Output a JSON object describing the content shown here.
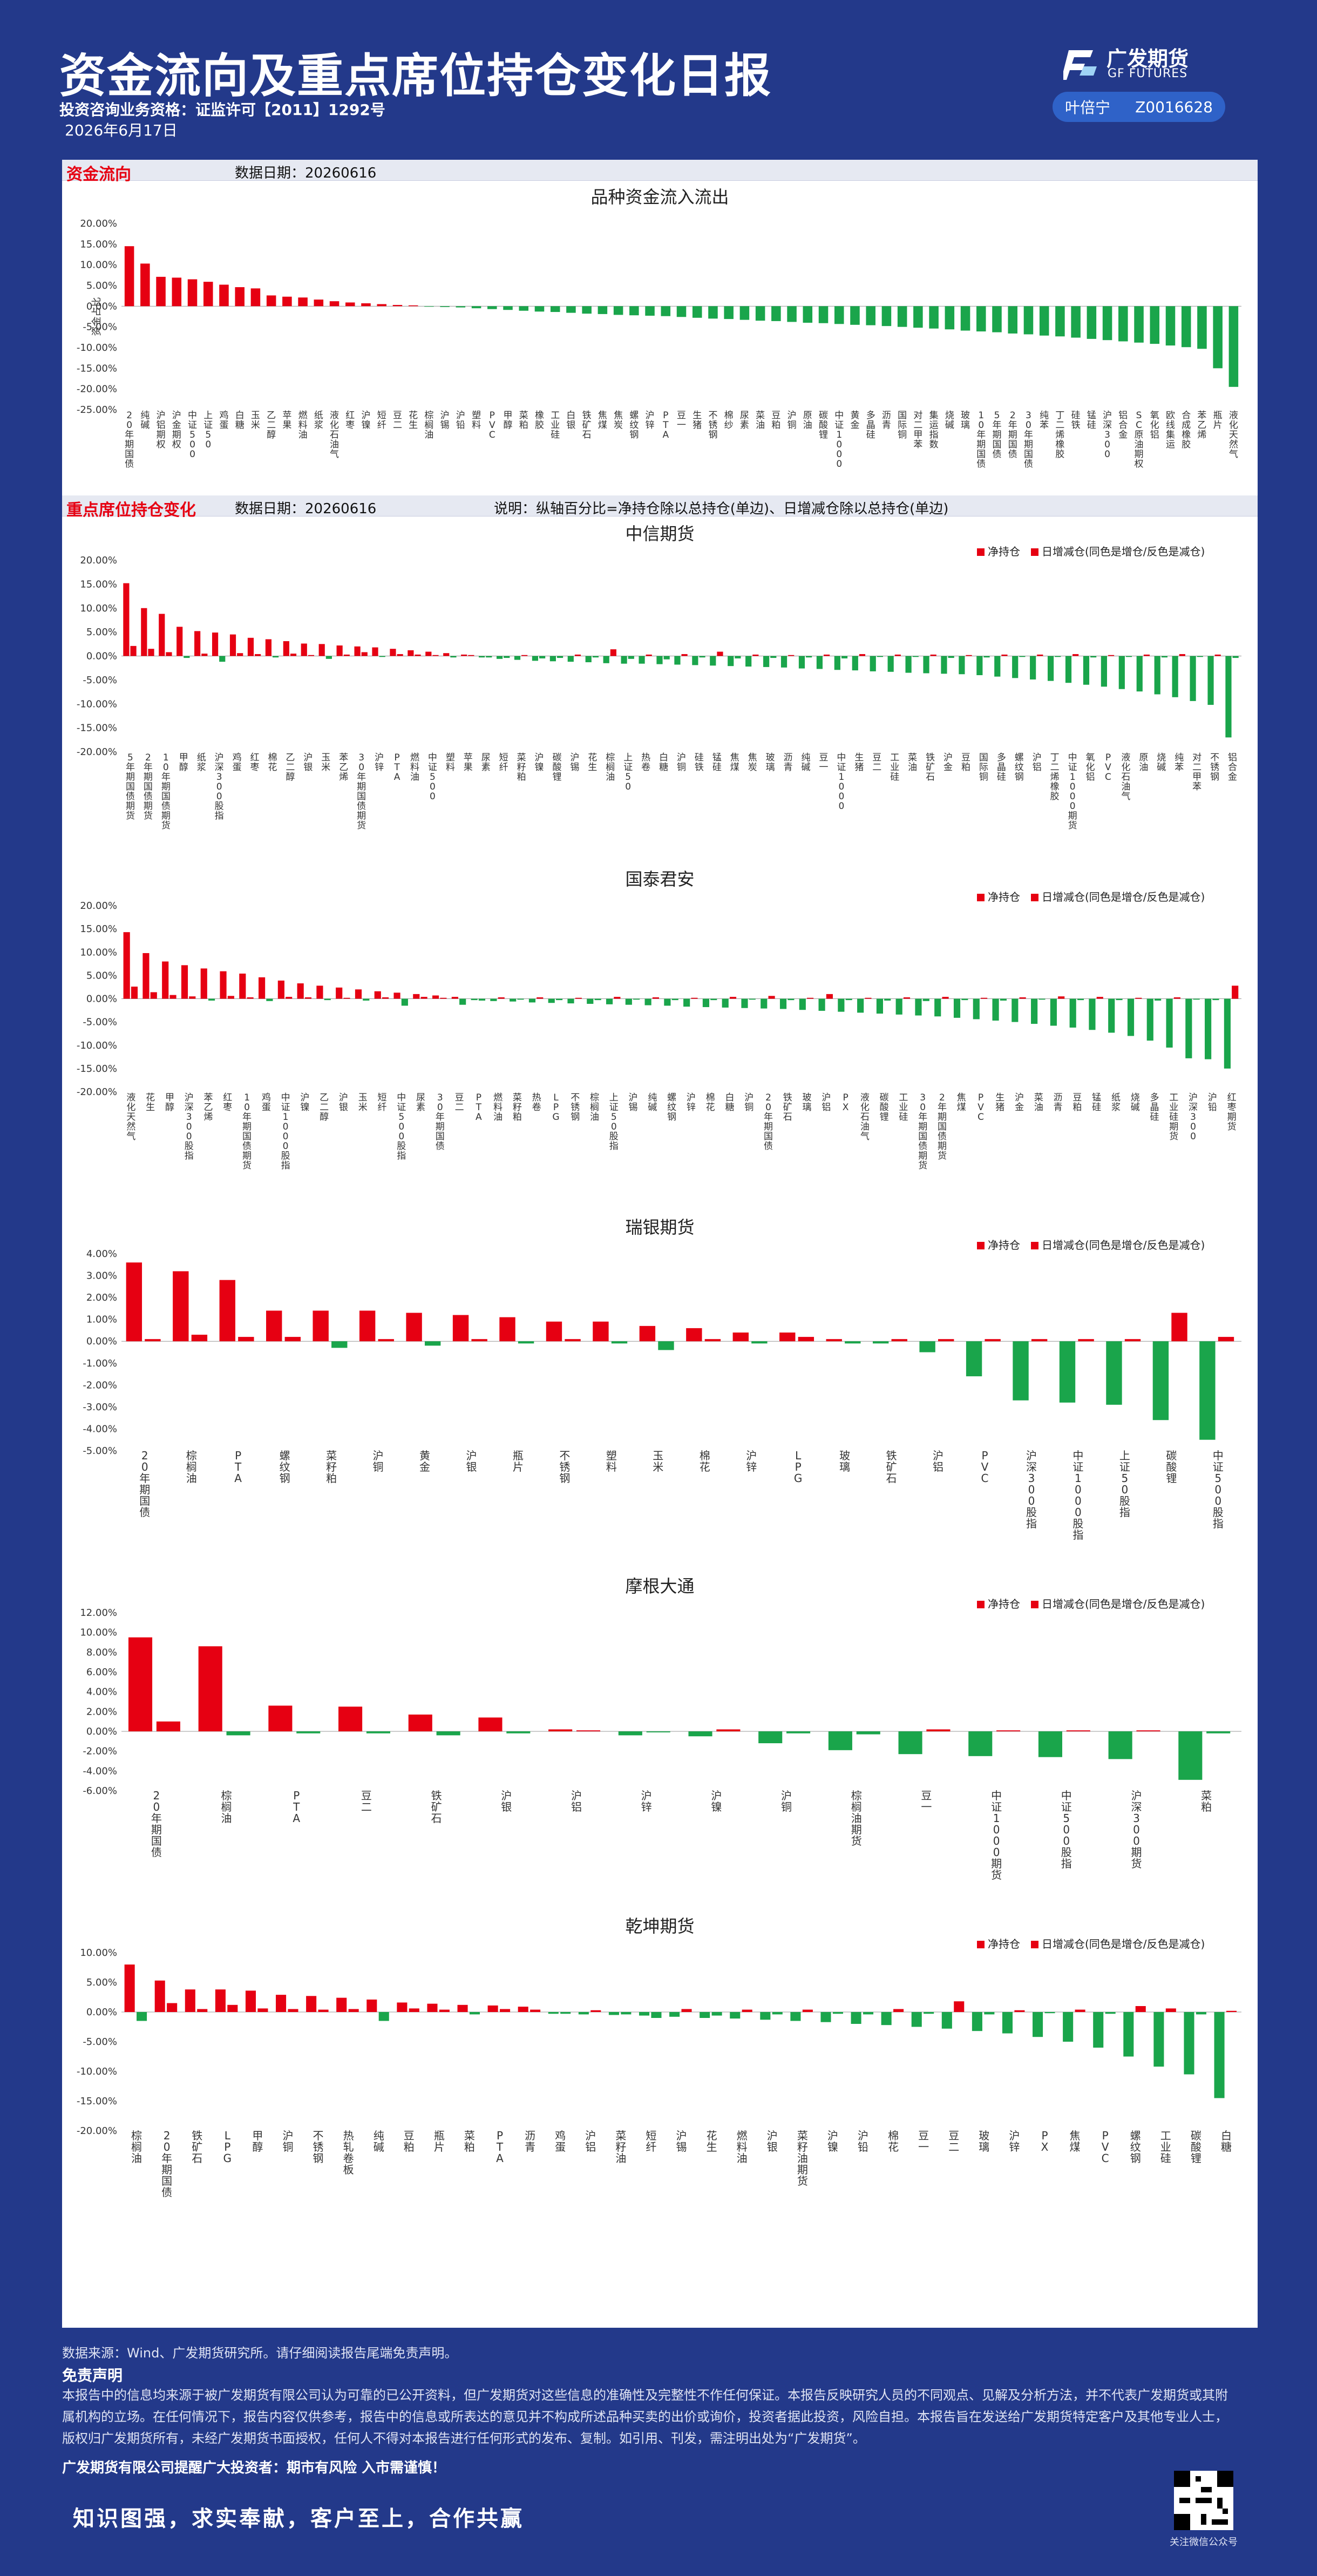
{
  "header": {
    "title": "资金流向及重点席位持仓变化日报",
    "license": "投资咨询业务资格：证监许可【2011】1292号",
    "date": "2026年6月17日",
    "logo_cn": "广发期货",
    "logo_en": "GF FUTURES",
    "analyst_name": "叶倍宁",
    "analyst_id": "Z0016628"
  },
  "sections": {
    "fund_flow": {
      "name": "资金流向",
      "date_label": "数据日期：",
      "date": "20260616"
    },
    "positions": {
      "name": "重点席位持仓变化",
      "date_label": "数据日期：",
      "date": "20260616",
      "note": "说明：纵轴百分比=净持仓除以总持仓(单边)、日增减仓除以总持仓(单边)"
    }
  },
  "legend": {
    "net": "净持仓",
    "change": "日增减仓(同色是增仓/反色是减仓)"
  },
  "colors": {
    "up": "#e60012",
    "down": "#1aa54b",
    "navy": "#23398a",
    "accent": "#e60012"
  },
  "chart_data": [
    {
      "id": "flow",
      "type": "bar",
      "title": "品种资金流入流出",
      "ylabel": "资金占比",
      "ylim": [
        -25,
        20
      ],
      "ticks": [
        20,
        15,
        10,
        5,
        0,
        -5,
        -10,
        -15,
        -20,
        -25
      ],
      "categories": [
        "20年期国债",
        "纯碱",
        "沪铝期权",
        "沪金期权",
        "中证500",
        "上证50",
        "鸡蛋",
        "白糖",
        "玉米",
        "乙二醇",
        "苹果",
        "燃料油",
        "纸浆",
        "液化石油气",
        "红枣",
        "沪镍",
        "短纤",
        "豆二",
        "花生",
        "棕榈油",
        "沪锡",
        "沪铅",
        "塑料",
        "PVC",
        "甲醇",
        "菜粕",
        "橡胶",
        "工业硅",
        "白银",
        "铁矿石",
        "焦煤",
        "焦炭",
        "螺纹钢",
        "沪锌",
        "PTA",
        "豆一",
        "生猪",
        "不锈钢",
        "棉纱",
        "尿素",
        "菜油",
        "豆粕",
        "沪铜",
        "原油",
        "碳酸锂",
        "中证1000",
        "黄金",
        "多晶硅",
        "沥青",
        "国际铜",
        "对二甲苯",
        "集运指数",
        "烧碱",
        "玻璃",
        "10年期国债",
        "5年期国债",
        "2年期国债",
        "30年期国债",
        "纯苯",
        "丁二烯橡胶",
        "硅铁",
        "锰硅",
        "沪深300",
        "铝合金",
        "SC原油期权",
        "氧化铝",
        "欧线集运",
        "合成橡胶",
        "苯乙烯",
        "瓶片",
        "液化天然气"
      ],
      "series": [
        {
          "values": [
            14.5,
            10.3,
            7.1,
            6.9,
            6.5,
            5.9,
            5.2,
            4.6,
            4.3,
            2.6,
            2.3,
            2.1,
            1.6,
            1.2,
            0.9,
            0.7,
            0.5,
            0.3,
            0.2,
            -0.1,
            -0.2,
            -0.3,
            -0.5,
            -0.7,
            -0.9,
            -1.1,
            -1.3,
            -1.4,
            -1.6,
            -1.8,
            -1.9,
            -2.1,
            -2.2,
            -2.3,
            -2.4,
            -2.6,
            -2.8,
            -3.0,
            -3.1,
            -3.3,
            -3.5,
            -3.6,
            -3.8,
            -4.0,
            -4.1,
            -4.3,
            -4.5,
            -4.6,
            -4.8,
            -5.0,
            -5.2,
            -5.4,
            -5.6,
            -5.9,
            -6.1,
            -6.3,
            -6.6,
            -6.8,
            -7.1,
            -7.3,
            -7.6,
            -7.9,
            -8.2,
            -8.5,
            -8.8,
            -9.1,
            -9.5,
            -9.9,
            -10.3,
            -15.0,
            -19.5
          ]
        }
      ]
    },
    {
      "id": "citic",
      "type": "bar",
      "title": "中信期货",
      "ylim": [
        -20,
        20
      ],
      "ticks": [
        20,
        15,
        10,
        5,
        0,
        -5,
        -10,
        -15,
        -20
      ],
      "categories": [
        "5年期国债期货",
        "2年期国债期货",
        "10年期国债期货",
        "甲醇",
        "纸浆",
        "沪深300股指",
        "鸡蛋",
        "红枣",
        "棉花",
        "乙二醇",
        "沪银",
        "玉米",
        "苯乙烯",
        "30年期国债期货",
        "沪锌",
        "PTA",
        "燃料油",
        "中证500",
        "塑料",
        "苹果",
        "尿素",
        "短纤",
        "菜籽粕",
        "沪镍",
        "碳酸锂",
        "沪锡",
        "花生",
        "棕榈油",
        "上证50",
        "热卷",
        "白糖",
        "沪铜",
        "硅铁",
        "锰硅",
        "焦煤",
        "焦炭",
        "玻璃",
        "沥青",
        "纯碱",
        "豆一",
        "中证1000",
        "生猪",
        "豆二",
        "工业硅",
        "菜油",
        "铁矿石",
        "沪金",
        "豆粕",
        "国际铜",
        "多晶硅",
        "螺纹钢",
        "沪铝",
        "丁二烯橡胶",
        "中证1000期货",
        "氧化铝",
        "PVC",
        "液化石油气",
        "原油",
        "烧碱",
        "纯苯",
        "对二甲苯",
        "不锈钢",
        "铝合金"
      ],
      "series": [
        {
          "name": "净持仓",
          "values": [
            15.2,
            10.0,
            8.8,
            6.1,
            5.2,
            4.9,
            4.5,
            3.8,
            3.5,
            3.1,
            2.6,
            2.5,
            2.2,
            2.0,
            1.8,
            1.5,
            1.2,
            0.9,
            0.6,
            0.3,
            -0.3,
            -0.6,
            -0.8,
            -1.0,
            -1.1,
            -1.2,
            -1.3,
            -1.5,
            -1.6,
            -1.6,
            -1.7,
            -1.8,
            -1.9,
            -2.0,
            -2.1,
            -2.2,
            -2.3,
            -2.4,
            -2.6,
            -2.7,
            -2.9,
            -3.0,
            -3.2,
            -3.3,
            -3.5,
            -3.6,
            -3.7,
            -3.8,
            -4.0,
            -4.3,
            -4.6,
            -4.9,
            -5.2,
            -5.6,
            -6.0,
            -6.4,
            -6.9,
            -7.4,
            -8.0,
            -8.6,
            -9.4,
            -10.2,
            -17.0
          ]
        },
        {
          "name": "日增减仓",
          "values": [
            2.1,
            1.5,
            0.8,
            -0.4,
            0.5,
            -1.2,
            0.6,
            0.4,
            -0.3,
            0.5,
            0.2,
            -0.6,
            0.3,
            0.8,
            -0.2,
            0.4,
            0.3,
            0.2,
            -0.3,
            0.2,
            -0.3,
            -0.4,
            0.2,
            -0.5,
            -0.4,
            0.3,
            -0.3,
            1.4,
            -0.6,
            0.3,
            -0.7,
            0.4,
            -0.3,
            0.9,
            -0.5,
            0.3,
            -0.4,
            0.2,
            -0.3,
            0.3,
            -0.5,
            0.4,
            -0.2,
            0.3,
            -0.2,
            0.3,
            -0.4,
            0.2,
            -0.3,
            0.3,
            -0.2,
            0.3,
            -0.2,
            0.4,
            -0.3,
            0.2,
            -0.2,
            0.3,
            -0.3,
            0.4,
            -0.2,
            0.3,
            -0.4
          ]
        }
      ]
    },
    {
      "id": "gtja",
      "type": "bar",
      "title": "国泰君安",
      "ylim": [
        -20,
        20
      ],
      "ticks": [
        20,
        15,
        10,
        5,
        0,
        -5,
        -10,
        -15,
        -20
      ],
      "categories": [
        "液化天然气",
        "花生",
        "甲醇",
        "沪深300股指",
        "苯乙烯",
        "红枣",
        "10年期国债期货",
        "鸡蛋",
        "中证1000股指",
        "沪镍",
        "乙二醇",
        "沪银",
        "玉米",
        "短纤",
        "中证500股指",
        "尿素",
        "30年期国债",
        "豆二",
        "PTA",
        "燃料油",
        "菜籽粕",
        "热卷",
        "LPG",
        "不锈钢",
        "棕榈油",
        "上证50股指",
        "沪锡",
        "纯碱",
        "螺纹钢",
        "沪锌",
        "棉花",
        "白糖",
        "沪铜",
        "20年期国债",
        "铁矿石",
        "玻璃",
        "沪铝",
        "PX",
        "液化石油气",
        "碳酸锂",
        "工业硅",
        "30年期国债期货",
        "2年期国债期货",
        "焦煤",
        "PVC",
        "生猪",
        "沪金",
        "菜油",
        "沥青",
        "豆粕",
        "锰硅",
        "纸浆",
        "烧碱",
        "多晶硅",
        "工业硅期货",
        "沪深300",
        "沪铅",
        "红枣期货"
      ],
      "series": [
        {
          "name": "净持仓",
          "values": [
            14.3,
            9.8,
            8.0,
            7.2,
            6.5,
            5.9,
            5.4,
            4.6,
            3.9,
            3.3,
            2.8,
            2.4,
            2.0,
            1.6,
            1.3,
            1.0,
            0.7,
            0.4,
            -0.3,
            -0.5,
            -0.6,
            -0.8,
            -0.9,
            -1.0,
            -1.1,
            -1.2,
            -1.3,
            -1.4,
            -1.5,
            -1.7,
            -1.8,
            -1.9,
            -2.0,
            -2.1,
            -2.2,
            -2.4,
            -2.6,
            -2.8,
            -3.0,
            -3.2,
            -3.4,
            -3.6,
            -3.8,
            -4.1,
            -4.4,
            -4.7,
            -5.0,
            -5.4,
            -5.8,
            -6.2,
            -6.7,
            -7.3,
            -8.0,
            -9.0,
            -10.5,
            -12.8,
            -13.0,
            -15.0
          ]
        },
        {
          "name": "日增减仓",
          "values": [
            2.6,
            1.4,
            0.8,
            0.5,
            -0.4,
            0.6,
            0.3,
            -0.5,
            0.4,
            0.3,
            -0.3,
            0.2,
            -0.4,
            0.3,
            -1.5,
            0.4,
            0.2,
            -1.3,
            -0.4,
            0.3,
            -0.2,
            0.3,
            -0.3,
            0.2,
            -0.3,
            0.4,
            -0.2,
            0.3,
            -0.3,
            0.2,
            -0.3,
            0.4,
            -0.2,
            0.6,
            -0.3,
            0.2,
            1.0,
            -0.3,
            0.2,
            -0.4,
            0.3,
            -0.5,
            0.4,
            -0.3,
            0.2,
            -0.4,
            0.3,
            -0.2,
            0.5,
            -0.3,
            0.4,
            -0.3,
            0.2,
            -0.4,
            0.3,
            -0.2,
            -0.3,
            2.8
          ]
        }
      ]
    },
    {
      "id": "ubs",
      "type": "bar",
      "title": "瑞银期货",
      "ylim": [
        -5,
        4
      ],
      "ticks": [
        4,
        3,
        2,
        1,
        0,
        -1,
        -2,
        -3,
        -4,
        -5
      ],
      "categories": [
        "20年期国债",
        "棕榈油",
        "PTA",
        "螺纹钢",
        "菜籽粕",
        "沪铜",
        "黄金",
        "沪银",
        "瓶片",
        "不锈钢",
        "塑料",
        "玉米",
        "棉花",
        "沪锌",
        "LPG",
        "玻璃",
        "铁矿石",
        "沪铝",
        "PVC",
        "沪深300股指",
        "中证1000股指",
        "上证50股指",
        "碳酸锂",
        "中证500股指"
      ],
      "series": [
        {
          "name": "净持仓",
          "values": [
            3.6,
            3.2,
            2.8,
            1.4,
            1.4,
            1.4,
            1.3,
            1.2,
            1.1,
            0.9,
            0.9,
            0.7,
            0.6,
            0.4,
            0.4,
            0.1,
            -0.1,
            -0.5,
            -1.6,
            -2.7,
            -2.8,
            -2.9,
            -3.6,
            -4.5
          ]
        },
        {
          "name": "日增减仓",
          "values": [
            0.1,
            0.3,
            0.2,
            0.2,
            -0.3,
            0.1,
            -0.2,
            0.1,
            -0.1,
            0.1,
            -0.1,
            -0.4,
            0.1,
            -0.1,
            0.2,
            -0.1,
            0.1,
            0.1,
            0.1,
            0.1,
            0.1,
            0.1,
            1.3,
            0.2
          ]
        }
      ]
    },
    {
      "id": "jpm",
      "type": "bar",
      "title": "摩根大通",
      "ylim": [
        -6,
        12
      ],
      "ticks": [
        12,
        10,
        8,
        6,
        4,
        2,
        0,
        -2,
        -4,
        -6
      ],
      "categories": [
        "20年期国债",
        "棕榈油",
        "PTA",
        "豆二",
        "铁矿石",
        "沪银",
        "沪铝",
        "沪锌",
        "沪镍",
        "沪铜",
        "棕榈油期货",
        "豆一",
        "中证1000期货",
        "中证500股指",
        "沪深300期货",
        "菜粕"
      ],
      "series": [
        {
          "name": "净持仓",
          "values": [
            9.5,
            8.6,
            2.6,
            2.5,
            1.7,
            1.4,
            0.2,
            -0.4,
            -0.5,
            -1.2,
            -1.9,
            -2.3,
            -2.5,
            -2.6,
            -2.8,
            -4.9
          ]
        },
        {
          "name": "日增减仓",
          "values": [
            1.0,
            -0.4,
            -0.2,
            -0.2,
            -0.4,
            -0.2,
            0.1,
            -0.1,
            0.2,
            -0.2,
            -0.3,
            0.2,
            0.1,
            0.1,
            0.1,
            -0.2
          ]
        }
      ]
    },
    {
      "id": "qiankun",
      "type": "bar",
      "title": "乾坤期货",
      "ylim": [
        -20,
        10
      ],
      "ticks": [
        10,
        5,
        0,
        -5,
        -10,
        -15,
        -20
      ],
      "categories": [
        "棕榈油",
        "20年期国债",
        "铁矿石",
        "LPG",
        "甲醇",
        "沪铜",
        "不锈钢",
        "热轧卷板",
        "纯碱",
        "豆粕",
        "瓶片",
        "菜粕",
        "PTA",
        "沥青",
        "鸡蛋",
        "沪铝",
        "菜籽油",
        "短纤",
        "沪锡",
        "花生",
        "燃料油",
        "沪银",
        "菜籽油期货",
        "沪镍",
        "沪铅",
        "棉花",
        "豆一",
        "豆二",
        "玻璃",
        "沪锌",
        "PX",
        "焦煤",
        "PVC",
        "螺纹钢",
        "工业硅",
        "碳酸锂",
        "白糖"
      ],
      "series": [
        {
          "name": "净持仓",
          "values": [
            8.0,
            5.3,
            3.8,
            3.8,
            3.6,
            2.9,
            2.7,
            2.4,
            2.1,
            1.6,
            1.4,
            1.2,
            1.1,
            0.9,
            -0.3,
            -0.4,
            -0.5,
            -0.6,
            -0.8,
            -1.0,
            -1.1,
            -1.3,
            -1.5,
            -1.7,
            -2.0,
            -2.2,
            -2.5,
            -2.8,
            -3.2,
            -3.6,
            -4.2,
            -5.0,
            -6.0,
            -7.5,
            -9.2,
            -10.5,
            -14.5
          ]
        },
        {
          "name": "日增减仓",
          "values": [
            -1.5,
            1.5,
            0.5,
            1.2,
            0.6,
            0.5,
            0.4,
            0.5,
            -1.5,
            0.6,
            0.4,
            -0.4,
            0.5,
            0.4,
            -0.3,
            0.3,
            -0.4,
            -1.0,
            0.5,
            -0.6,
            0.4,
            -0.4,
            0.4,
            -0.3,
            -0.4,
            0.5,
            -0.3,
            1.8,
            -0.4,
            0.3,
            -0.2,
            0.4,
            -0.3,
            1.0,
            0.6,
            -0.4,
            0.2
          ]
        }
      ]
    }
  ],
  "footer": {
    "source": "数据来源：Wind、广发期货研究所。请仔细阅读报告尾端免责声明。",
    "disclaimer_title": "免责声明",
    "disclaimer": "本报告中的信息均来源于被广发期货有限公司认为可靠的已公开资料，但广发期货对这些信息的准确性及完整性不作任何保证。本报告反映研究人员的不同观点、见解及分析方法，并不代表广发期货或其附属机构的立场。在任何情况下，报告内容仅供参考，报告中的信息或所表达的意见并不构成所述品种买卖的出价或询价，投资者据此投资，风险自担。本报告旨在发送给广发期货特定客户及其他专业人士，版权归广发期货所有，未经广发期货书面授权，任何人不得对本报告进行任何形式的发布、复制。如引用、刊发，需注明出处为“广发期货”。",
    "reminder": "广发期货有限公司提醒广大投资者：期市有风险 入市需谨慎！",
    "slogan": "知识图强，求实奉献，客户至上，合作共赢",
    "qr_label": "关注微信公众号"
  }
}
